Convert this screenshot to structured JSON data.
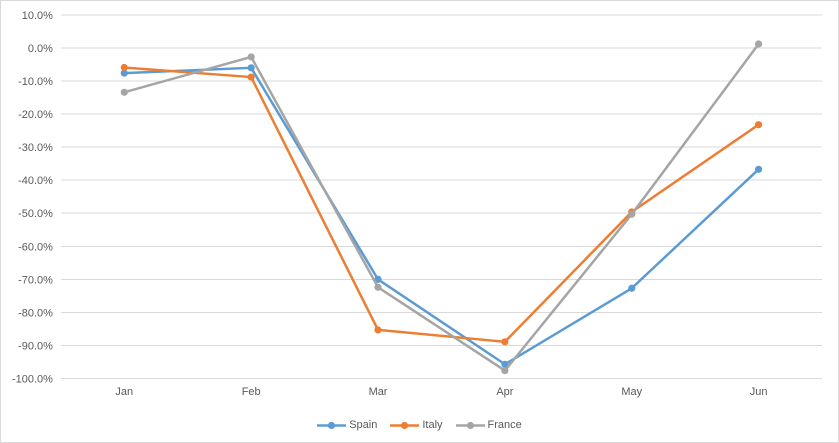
{
  "chart_data": {
    "type": "line",
    "title": "",
    "categories": [
      "Jan",
      "Feb",
      "Mar",
      "Apr",
      "May",
      "Jun"
    ],
    "series": [
      {
        "name": "Spain",
        "color": "#5B9BD5",
        "values": [
          -7.6,
          -6.0,
          -70.0,
          -95.7,
          -72.7,
          -36.7
        ]
      },
      {
        "name": "Italy",
        "color": "#ED7D31",
        "values": [
          -5.9,
          -8.8,
          -85.3,
          -88.9,
          -49.6,
          -23.2
        ]
      },
      {
        "name": "France",
        "color": "#A5A5A5",
        "values": [
          -13.4,
          -2.7,
          -72.4,
          -97.6,
          -50.3,
          1.2
        ]
      }
    ],
    "y_axis": {
      "min": -100,
      "max": 10,
      "step": 10,
      "tick_labels": [
        "10.0%",
        "0.0%",
        "-10.0%",
        "-20.0%",
        "-30.0%",
        "-40.0%",
        "-50.0%",
        "-60.0%",
        "-70.0%",
        "-80.0%",
        "-90.0%",
        "-100.0%"
      ]
    },
    "grid": true,
    "legend_position": "bottom",
    "marker": "circle",
    "styles": {
      "gridline_color": "#D9D9D9",
      "axis_text_color": "#595959",
      "border_color": "#D9D9D9",
      "background": "#FFFFFF"
    }
  }
}
